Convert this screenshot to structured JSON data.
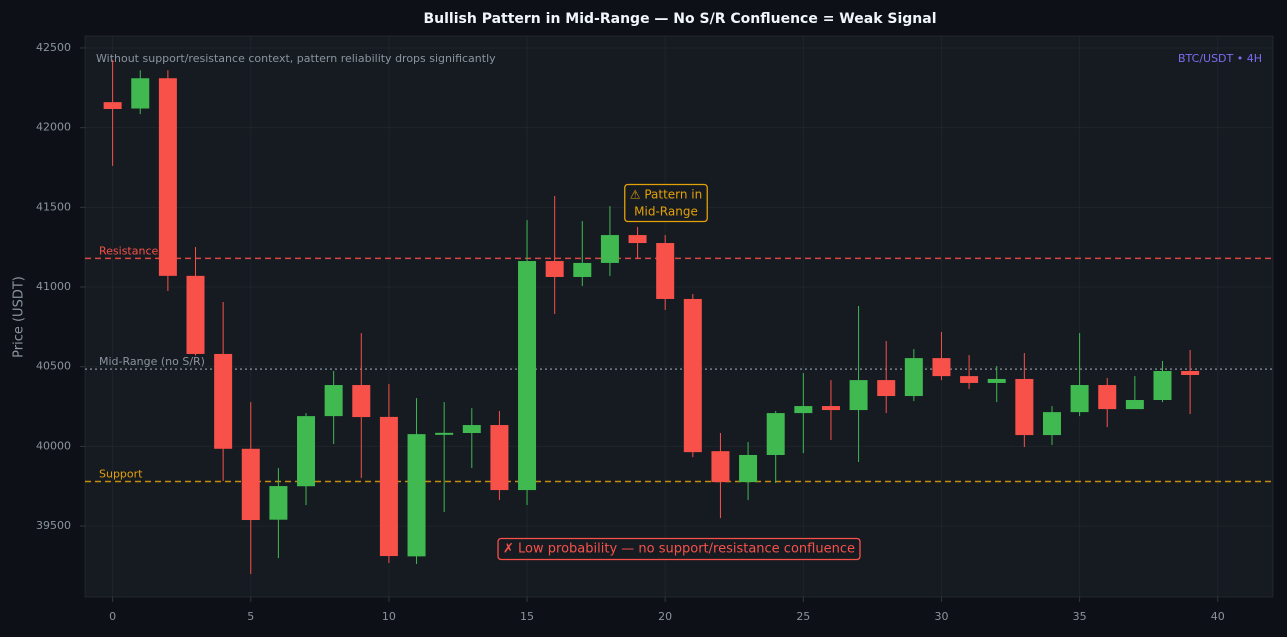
{
  "chart_data": {
    "type": "candlestick",
    "title": "Bullish Pattern in Mid-Range — No S/R Confluence = Weak Signal",
    "subtitle": "Without support/resistance context, pattern reliability drops significantly",
    "corner_label": "BTC/USDT • 4H",
    "y_label": "Price (USDT)",
    "x": [
      0,
      1,
      2,
      3,
      4,
      5,
      6,
      7,
      8,
      9,
      10,
      11,
      12,
      13,
      14,
      15,
      16,
      17,
      18,
      19,
      20,
      21,
      22,
      23,
      24,
      25,
      26,
      27,
      28,
      29,
      30,
      31,
      32,
      33,
      34,
      35,
      36,
      37,
      38,
      39
    ],
    "open": [
      42160,
      42120,
      42310,
      41070,
      40580,
      39985,
      39540,
      39750,
      40190,
      40385,
      40185,
      39310,
      40075,
      40084,
      40134,
      39726,
      41163,
      41063,
      41151,
      41326,
      41276,
      40925,
      39970,
      39776,
      39946,
      40209,
      40253,
      40228,
      40416,
      40316,
      40554,
      40441,
      40398,
      40423,
      40071,
      40215,
      40385,
      40234,
      40291,
      40473
    ],
    "high": [
      42425,
      42360,
      42360,
      41251,
      40906,
      40278,
      39864,
      40209,
      40473,
      40711,
      40391,
      40303,
      40278,
      40240,
      40222,
      41420,
      41571,
      41414,
      41508,
      41377,
      41326,
      40956,
      40084,
      40027,
      40222,
      40460,
      40416,
      40881,
      40661,
      40611,
      40718,
      40573,
      40504,
      40586,
      40253,
      40711,
      40429,
      40441,
      40536,
      40605
    ],
    "low": [
      41760,
      42085,
      40975,
      40570,
      39783,
      39199,
      39299,
      39632,
      40015,
      39801,
      39268,
      39262,
      39588,
      39864,
      39663,
      39632,
      40831,
      41006,
      41069,
      41176,
      40856,
      39933,
      39550,
      39663,
      39770,
      39958,
      40040,
      39902,
      40209,
      40285,
      40416,
      40360,
      40278,
      39996,
      40009,
      40190,
      40121,
      40234,
      40278,
      40203
    ],
    "close": [
      42117,
      42310,
      41070,
      40580,
      39985,
      39538,
      39751,
      40190,
      40385,
      40184,
      39312,
      40077,
      40085,
      40134,
      39726,
      41163,
      41063,
      41151,
      41326,
      41276,
      40925,
      39964,
      39776,
      39946,
      40209,
      40253,
      40228,
      40416,
      40316,
      40554,
      40441,
      40398,
      40423,
      40071,
      40215,
      40385,
      40234,
      40291,
      40473,
      40448
    ],
    "up_color": "#3fb950",
    "down_color": "#f85149",
    "xlim": [
      -1,
      42
    ],
    "ylim": [
      39055,
      42575
    ],
    "xticks": [
      0,
      5,
      10,
      15,
      20,
      25,
      30,
      35,
      40
    ],
    "yticks": [
      39500,
      40000,
      40500,
      41000,
      41500,
      42000,
      42500
    ],
    "grid": true,
    "levels": [
      {
        "name": "Resistance",
        "value": 41180,
        "color": "#f85149",
        "style": "dashed"
      },
      {
        "name": "Mid-Range (no S/R)",
        "value": 40485,
        "color": "#8b949e",
        "style": "dotted"
      },
      {
        "name": "Support",
        "value": 39780,
        "color": "#e3a008",
        "style": "dashed"
      }
    ],
    "annotations": [
      {
        "text": [
          "⚠ Pattern in",
          "Mid-Range"
        ],
        "color": "#e3a008"
      },
      {
        "text": [
          "✗ Low probability — no support/resistance confluence"
        ],
        "color": "#f85149"
      }
    ]
  }
}
